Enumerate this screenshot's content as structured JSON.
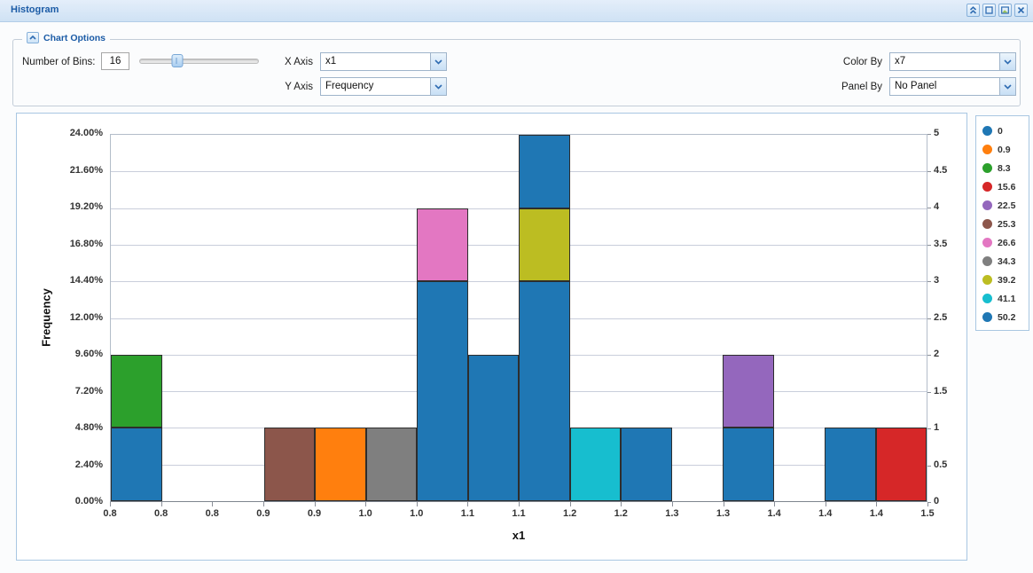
{
  "title_bar": {
    "title": "Histogram"
  },
  "window_buttons": {
    "icons": [
      "collapse-panel",
      "maximize",
      "export-image",
      "close"
    ]
  },
  "chart_options": {
    "legend_label": "Chart Options",
    "bins_label": "Number of Bins:",
    "bins_value": "16",
    "slider_percent": 32,
    "x_axis_label": "X Axis",
    "x_axis_value": "x1",
    "y_axis_label": "Y Axis",
    "y_axis_value": "Frequency",
    "color_by_label": "Color By",
    "color_by_value": "x7",
    "panel_by_label": "Panel By",
    "panel_by_value": "No Panel"
  },
  "chart_data": {
    "type": "bar",
    "subtype": "stacked-histogram",
    "title": "",
    "xlabel": "x1",
    "ylabel": "Frequency",
    "n_bins": 16,
    "count_max": 5,
    "grid": true,
    "legend_position": "right",
    "y_left_ticks": [
      "24.00%",
      "21.60%",
      "19.20%",
      "16.80%",
      "14.40%",
      "12.00%",
      "9.60%",
      "7.20%",
      "4.80%",
      "2.40%",
      "0.00%"
    ],
    "y_right_ticks": [
      "5",
      "4.5",
      "4",
      "3.5",
      "3",
      "2.5",
      "2",
      "1.5",
      "1",
      "0.5",
      "0"
    ],
    "x_tick_labels": [
      "0.8",
      "0.8",
      "0.8",
      "0.9",
      "0.9",
      "1.0",
      "1.0",
      "1.1",
      "1.1",
      "1.2",
      "1.2",
      "1.3",
      "1.3",
      "1.4",
      "1.4",
      "1.4",
      "1.5"
    ],
    "legend": [
      {
        "label": "0",
        "color": "#1f77b4"
      },
      {
        "label": "0.9",
        "color": "#ff7f0e"
      },
      {
        "label": "8.3",
        "color": "#2ca02c"
      },
      {
        "label": "15.6",
        "color": "#d62728"
      },
      {
        "label": "22.5",
        "color": "#9467bd"
      },
      {
        "label": "25.3",
        "color": "#8c564b"
      },
      {
        "label": "26.6",
        "color": "#e377c2"
      },
      {
        "label": "34.3",
        "color": "#7f7f7f"
      },
      {
        "label": "39.2",
        "color": "#bcbd22"
      },
      {
        "label": "41.1",
        "color": "#17becf"
      },
      {
        "label": "50.2",
        "color": "#1f77b4"
      }
    ],
    "bins": [
      {
        "segments": [
          {
            "color": "0",
            "count": 1
          },
          {
            "color": "8.3",
            "count": 1
          }
        ]
      },
      {
        "segments": []
      },
      {
        "segments": []
      },
      {
        "segments": [
          {
            "color": "25.3",
            "count": 1
          }
        ]
      },
      {
        "segments": [
          {
            "color": "0.9",
            "count": 1
          }
        ]
      },
      {
        "segments": [
          {
            "color": "34.3",
            "count": 1
          }
        ]
      },
      {
        "segments": [
          {
            "color": "0",
            "count": 3
          },
          {
            "color": "26.6",
            "count": 1
          }
        ]
      },
      {
        "segments": [
          {
            "color": "0",
            "count": 2
          }
        ]
      },
      {
        "segments": [
          {
            "color": "0",
            "count": 3
          },
          {
            "color": "39.2",
            "count": 1
          },
          {
            "color": "50.2",
            "count": 1
          }
        ]
      },
      {
        "segments": [
          {
            "color": "41.1",
            "count": 1
          }
        ]
      },
      {
        "segments": [
          {
            "color": "0",
            "count": 1
          }
        ]
      },
      {
        "segments": []
      },
      {
        "segments": [
          {
            "color": "0",
            "count": 1
          },
          {
            "color": "22.5",
            "count": 1
          }
        ]
      },
      {
        "segments": []
      },
      {
        "segments": [
          {
            "color": "0",
            "count": 1
          }
        ]
      },
      {
        "segments": [
          {
            "color": "15.6",
            "count": 1
          }
        ]
      }
    ]
  }
}
